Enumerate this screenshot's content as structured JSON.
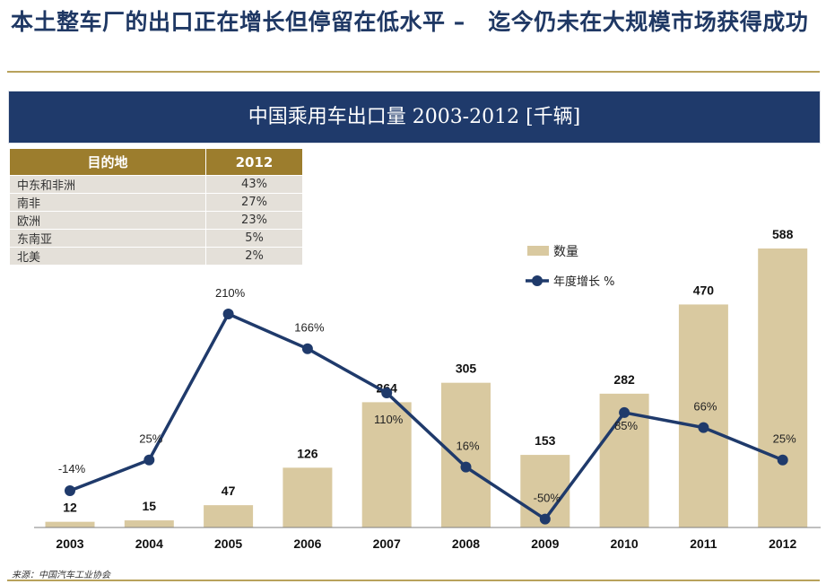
{
  "page": {
    "title": "本土整车厂的出口正在增长但停留在低水平 –　迄今仍未在大规模市场获得成功",
    "source": "来源：中国汽车工业协会"
  },
  "destination_table": {
    "headers": [
      "目的地",
      "2012"
    ],
    "rows": [
      {
        "region": "中东和非洲",
        "share": "43%"
      },
      {
        "region": "南非",
        "share": "27%"
      },
      {
        "region": "欧洲",
        "share": "23%"
      },
      {
        "region": "东南亚",
        "share": "5%"
      },
      {
        "region": "北美",
        "share": "2%"
      }
    ]
  },
  "chart_data": {
    "type": "bar",
    "title": "中国乘用车出口量 2003-2012 [千辆]",
    "categories": [
      "2003",
      "2004",
      "2005",
      "2006",
      "2007",
      "2008",
      "2009",
      "2010",
      "2011",
      "2012"
    ],
    "series": [
      {
        "name": "数量",
        "type": "bar",
        "color": "#d9c9a0",
        "values": [
          12,
          15,
          47,
          126,
          264,
          305,
          153,
          282,
          470,
          588
        ],
        "labels": [
          "12",
          "15",
          "47",
          "126",
          "264",
          "305",
          "153",
          "282",
          "470",
          "588"
        ]
      },
      {
        "name": "年度增长 %",
        "type": "line",
        "color": "#1f3a6b",
        "values": [
          -14,
          25,
          210,
          166,
          110,
          16,
          -50,
          85,
          66,
          25
        ],
        "labels": [
          "-14%",
          "25%",
          "210%",
          "166%",
          "110%",
          "16%",
          "-50%",
          "85%",
          "66%",
          "25%"
        ]
      }
    ],
    "legend_position": "top-right",
    "grid": false
  },
  "colors": {
    "navy": "#1f3a6b",
    "gold": "#9c7d2d",
    "bar": "#d9c9a0",
    "rule": "#b8a25c"
  }
}
